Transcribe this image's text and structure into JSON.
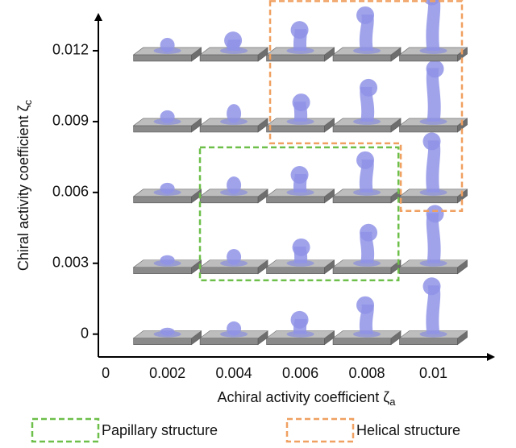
{
  "chart_data": {
    "type": "phase-diagram",
    "xlabel": "Achiral activity coefficient ζ",
    "xlabel_sub": "a",
    "ylabel": "Chiral activity coefficient ζ",
    "ylabel_sub": "c",
    "xlim": [
      -0.0001,
      0.012
    ],
    "ylim": [
      -0.001,
      0.0135
    ],
    "xticks": [
      0,
      0.002,
      0.004,
      0.006,
      0.008,
      0.01
    ],
    "yticks": [
      0,
      0.003,
      0.006,
      0.009,
      0.012
    ],
    "regions": [
      {
        "name": "Papillary structure",
        "color": "#6dbf4a",
        "x": [
          0.00298,
          0.00895,
          0.00895,
          0.00298
        ],
        "values": [
          0.00791,
          0.00791,
          0.00228,
          0.00228
        ]
      },
      {
        "name": "Helical structure",
        "color": "#f0a060",
        "x": [
          0.00509,
          0.01086,
          0.01086,
          0.00902,
          0.00902,
          0.00509
        ],
        "values": [
          0.0141,
          0.0141,
          0.00522,
          0.00522,
          0.00808,
          0.00808
        ]
      }
    ]
  }
}
